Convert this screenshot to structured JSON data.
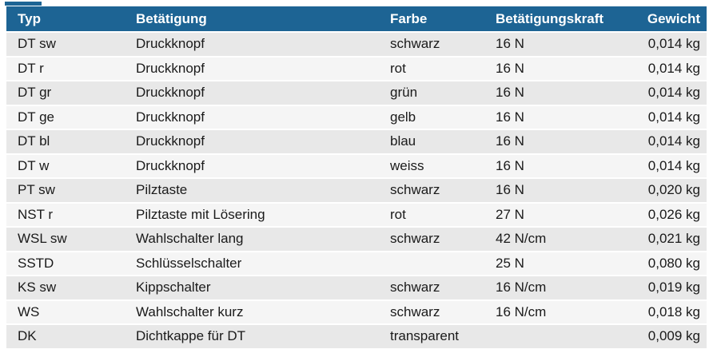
{
  "colors": {
    "header_bg": "#1d6494",
    "header_text": "#ffffff",
    "row_odd_bg": "#e8e8e8",
    "row_even_bg": "#f5f5f5",
    "body_text": "#1a1a1a"
  },
  "table": {
    "headers": [
      "Typ",
      "Betätigung",
      "Farbe",
      "Betätigungskraft",
      "Gewicht"
    ],
    "rows": [
      {
        "typ": "DT sw",
        "betaetigung": "Druckknopf",
        "farbe": "schwarz",
        "kraft": "16 N",
        "gewicht": "0,014 kg"
      },
      {
        "typ": "DT r",
        "betaetigung": "Druckknopf",
        "farbe": "rot",
        "kraft": "16 N",
        "gewicht": "0,014 kg"
      },
      {
        "typ": "DT gr",
        "betaetigung": "Druckknopf",
        "farbe": "grün",
        "kraft": "16 N",
        "gewicht": "0,014 kg"
      },
      {
        "typ": "DT ge",
        "betaetigung": "Druckknopf",
        "farbe": "gelb",
        "kraft": "16 N",
        "gewicht": "0,014 kg"
      },
      {
        "typ": "DT bl",
        "betaetigung": "Druckknopf",
        "farbe": "blau",
        "kraft": "16 N",
        "gewicht": "0,014 kg"
      },
      {
        "typ": "DT w",
        "betaetigung": "Druckknopf",
        "farbe": "weiss",
        "kraft": "16 N",
        "gewicht": "0,014 kg"
      },
      {
        "typ": "PT sw",
        "betaetigung": "Pilztaste",
        "farbe": "schwarz",
        "kraft": "16 N",
        "gewicht": "0,020 kg"
      },
      {
        "typ": "NST r",
        "betaetigung": "Pilztaste mit Lösering",
        "farbe": "rot",
        "kraft": "27 N",
        "gewicht": "0,026 kg"
      },
      {
        "typ": "WSL sw",
        "betaetigung": "Wahlschalter lang",
        "farbe": "schwarz",
        "kraft": "42 N/cm",
        "gewicht": "0,021 kg"
      },
      {
        "typ": "SSTD",
        "betaetigung": "Schlüsselschalter",
        "farbe": "",
        "kraft": "25 N",
        "gewicht": "0,080 kg"
      },
      {
        "typ": "KS sw",
        "betaetigung": "Kippschalter",
        "farbe": "schwarz",
        "kraft": "16 N/cm",
        "gewicht": "0,019 kg"
      },
      {
        "typ": "WS",
        "betaetigung": "Wahlschalter kurz",
        "farbe": "schwarz",
        "kraft": "16 N/cm",
        "gewicht": "0,018 kg"
      },
      {
        "typ": "DK",
        "betaetigung": "Dichtkappe für DT",
        "farbe": "transparent",
        "kraft": "",
        "gewicht": "0,009 kg"
      }
    ]
  }
}
